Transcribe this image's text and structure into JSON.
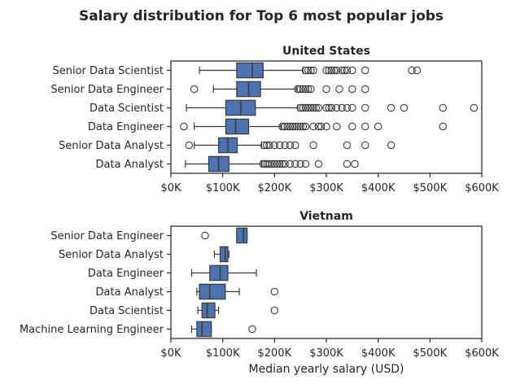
{
  "figure": {
    "title": "Salary distribution for Top 6 most popular jobs",
    "xlabel": "Median yearly salary (USD)"
  },
  "colors": {
    "box": "#4c72b0",
    "line": "#3a3a3a",
    "frame": "#262626"
  },
  "chart_data": [
    {
      "type": "box",
      "title": "United States",
      "xlim": [
        0,
        600000
      ],
      "xticks": [
        0,
        100000,
        200000,
        300000,
        400000,
        500000,
        600000
      ],
      "xticklabels": [
        "$0K",
        "$100K",
        "$200K",
        "$300K",
        "$400K",
        "$500K",
        "$600K"
      ],
      "categories": [
        "Senior Data Scientist",
        "Senior Data Engineer",
        "Data Scientist",
        "Data Engineer",
        "Senior Data Analyst",
        "Data Analyst"
      ],
      "boxes": [
        {
          "whislo": 55000,
          "q1": 127000,
          "med": 157000,
          "q3": 178000,
          "whishi": 255000,
          "fliers": [
            260000,
            265000,
            270000,
            275000,
            300000,
            305000,
            310000,
            315000,
            320000,
            330000,
            335000,
            340000,
            350000,
            375000,
            465000,
            475000
          ]
        },
        {
          "whislo": 82000,
          "q1": 127000,
          "med": 150000,
          "q3": 173000,
          "whishi": 242000,
          "fliers": [
            45000,
            245000,
            250000,
            255000,
            260000,
            265000,
            270000,
            300000,
            325000,
            350000,
            375000
          ]
        },
        {
          "whislo": 30000,
          "q1": 106000,
          "med": 135000,
          "q3": 163000,
          "whishi": 245000,
          "fliers": [
            250000,
            255000,
            260000,
            265000,
            270000,
            275000,
            280000,
            285000,
            300000,
            305000,
            310000,
            320000,
            330000,
            340000,
            350000,
            375000,
            425000,
            450000,
            525000,
            585000
          ]
        },
        {
          "whislo": 45000,
          "q1": 106000,
          "med": 125000,
          "q3": 150000,
          "whishi": 212000,
          "fliers": [
            25000,
            215000,
            220000,
            225000,
            230000,
            235000,
            240000,
            245000,
            250000,
            255000,
            260000,
            275000,
            285000,
            290000,
            300000,
            320000,
            350000,
            375000,
            400000,
            525000
          ]
        },
        {
          "whislo": 45000,
          "q1": 92000,
          "med": 110000,
          "q3": 128000,
          "whishi": 175000,
          "fliers": [
            35000,
            180000,
            185000,
            190000,
            200000,
            210000,
            220000,
            230000,
            240000,
            275000,
            340000,
            375000,
            425000
          ]
        },
        {
          "whislo": 28000,
          "q1": 73000,
          "med": 92000,
          "q3": 112000,
          "whishi": 175000,
          "fliers": [
            178000,
            182000,
            186000,
            190000,
            195000,
            200000,
            205000,
            210000,
            215000,
            220000,
            230000,
            240000,
            250000,
            260000,
            285000,
            340000,
            355000
          ]
        }
      ]
    },
    {
      "type": "box",
      "title": "Vietnam",
      "xlim": [
        0,
        600000
      ],
      "xticks": [
        0,
        100000,
        200000,
        300000,
        400000,
        500000,
        600000
      ],
      "xticklabels": [
        "$0K",
        "$100K",
        "$200K",
        "$300K",
        "$400K",
        "$500K",
        "$600K"
      ],
      "categories": [
        "Senior Data Engineer",
        "Senior Data Analyst",
        "Data Engineer",
        "Data Analyst",
        "Data Scientist",
        "Machine Learning Engineer"
      ],
      "boxes": [
        {
          "whislo": 127000,
          "q1": 127000,
          "med": 140000,
          "q3": 147000,
          "whishi": 147000,
          "fliers": [
            66000
          ]
        },
        {
          "whislo": 84000,
          "q1": 95000,
          "med": 105000,
          "q3": 110000,
          "whishi": 112000,
          "fliers": []
        },
        {
          "whislo": 40000,
          "q1": 75000,
          "med": 95000,
          "q3": 110000,
          "whishi": 165000,
          "fliers": []
        },
        {
          "whislo": 50000,
          "q1": 55000,
          "med": 75000,
          "q3": 105000,
          "whishi": 132000,
          "fliers": [
            200000
          ]
        },
        {
          "whislo": 52000,
          "q1": 60000,
          "med": 70000,
          "q3": 85000,
          "whishi": 92000,
          "fliers": [
            200000
          ]
        },
        {
          "whislo": 40000,
          "q1": 50000,
          "med": 60000,
          "q3": 78000,
          "whishi": 78000,
          "fliers": [
            157000
          ]
        }
      ]
    }
  ]
}
